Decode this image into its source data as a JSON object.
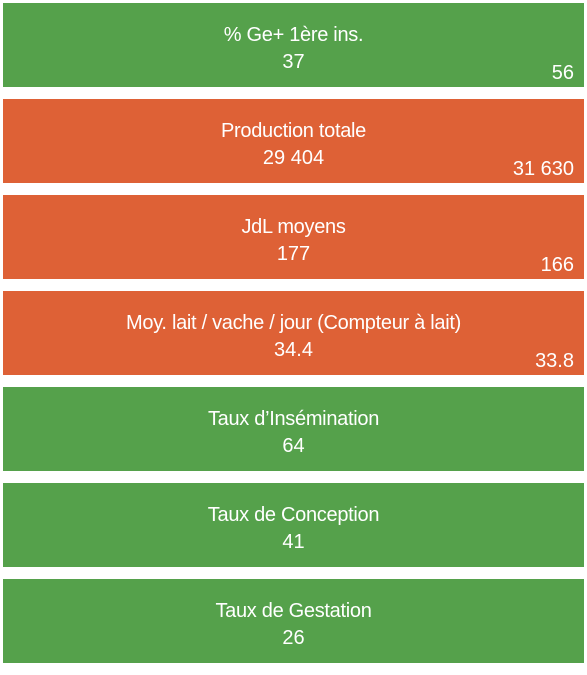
{
  "tiles": [
    {
      "label": "% Ge+ 1ère ins.",
      "value": "37",
      "target": "56",
      "status": "good",
      "color": "#55a14b"
    },
    {
      "label": "Production totale",
      "value": "29 404",
      "target": "31 630",
      "status": "bad",
      "color": "#de6136"
    },
    {
      "label": "JdL moyens",
      "value": "177",
      "target": "166",
      "status": "bad",
      "color": "#de6136"
    },
    {
      "label": "Moy. lait / vache / jour (Compteur à lait)",
      "value": "34.4",
      "target": "33.8",
      "status": "bad",
      "color": "#de6136"
    },
    {
      "label": "Taux d’Insémination",
      "value": "64",
      "status": "good",
      "color": "#55a14b"
    },
    {
      "label": "Taux de Conception",
      "value": "41",
      "status": "good",
      "color": "#55a14b"
    },
    {
      "label": "Taux de Gestation",
      "value": "26",
      "status": "good",
      "color": "#55a14b"
    }
  ]
}
